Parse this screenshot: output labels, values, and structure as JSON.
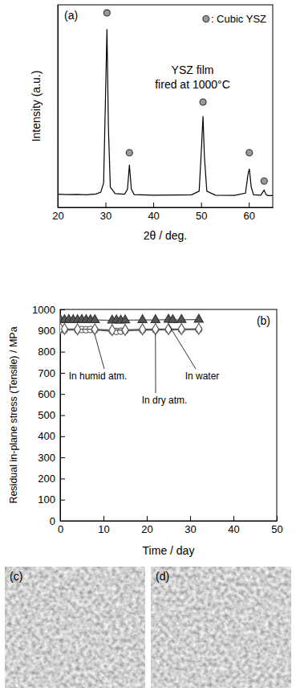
{
  "chart_data": [
    {
      "type": "line",
      "panel_label": "(a)",
      "x_label": "2θ / deg.",
      "y_label": "Intensity (a.u.)",
      "annotations": [
        "YSZ film",
        "fired at 1000°C"
      ],
      "xlim": [
        20,
        65
      ],
      "xticks": [
        20,
        30,
        40,
        50,
        60
      ],
      "ylim": [
        0,
        100
      ],
      "yticks": [],
      "tick_labels": "x",
      "legend": "upper right",
      "series": [
        {
          "type": "line",
          "color": "#000000",
          "x": [
            20,
            22,
            24,
            26,
            28,
            29,
            29.6,
            30.0,
            30.3,
            30.6,
            31,
            32,
            34,
            34.6,
            35,
            35.4,
            36,
            40,
            45,
            48,
            49.6,
            50.1,
            50.4,
            50.7,
            51.2,
            53,
            57,
            59.3,
            59.8,
            60.1,
            60.5,
            61,
            62.5,
            62.9,
            63.2,
            63.6,
            64,
            65
          ],
          "values": [
            6.5,
            6.3,
            6.4,
            6.2,
            6.6,
            7.5,
            12,
            55,
            88,
            40,
            10,
            6.8,
            6.5,
            9,
            21,
            9,
            6.3,
            6,
            6.1,
            6.2,
            8,
            30,
            45,
            25,
            8,
            6,
            5.9,
            7,
            16,
            19,
            10,
            6.2,
            6,
            7.5,
            8.5,
            6.3,
            5.8,
            5.8
          ]
        },
        {
          "type": "scatter",
          "name": ": Cubic YSZ",
          "color": "#999999",
          "marker": "circle",
          "x": [
            30.3,
            35,
            50.4,
            60.1,
            63.2
          ],
          "values": [
            96,
            27,
            52,
            27,
            13
          ]
        }
      ]
    },
    {
      "type": "line",
      "panel_label": "(b)",
      "x_label": "Time / day",
      "y_label": "Residual in-plane stress (Tensile) / MPa",
      "xlim": [
        0,
        50
      ],
      "xticks": [
        0,
        10,
        20,
        30,
        40,
        50
      ],
      "ylim": [
        0,
        1000
      ],
      "yticks": [
        0,
        100,
        200,
        300,
        400,
        500,
        600,
        700,
        800,
        900,
        1000
      ],
      "series": [
        {
          "name": "In water",
          "color": "#555555",
          "marker": "triangle",
          "x": [
            0,
            1,
            2,
            3,
            4,
            5,
            6,
            7,
            8,
            12,
            13,
            14,
            15,
            19,
            22,
            25,
            26,
            28,
            32
          ],
          "values": [
            952,
            950,
            951,
            950,
            950,
            951,
            950,
            950,
            950,
            948,
            949,
            948,
            949,
            950,
            950,
            952,
            950,
            951,
            952
          ]
        },
        {
          "name": "In humid atm.",
          "color": "#555555",
          "marker": "open-circle",
          "x": [
            0,
            1,
            4,
            5,
            6,
            7,
            8,
            12,
            13,
            14,
            15,
            19,
            22,
            25,
            28,
            32
          ],
          "values": [
            905,
            903,
            903,
            905,
            904,
            905,
            903,
            897,
            896,
            897,
            899,
            902,
            903,
            904,
            904,
            905
          ]
        },
        {
          "name": "In dry atm.",
          "color": "#555555",
          "marker": "open-diamond",
          "x": [
            0,
            1,
            4,
            8,
            12,
            15,
            19,
            22,
            25,
            28,
            32
          ],
          "values": [
            910,
            908,
            906,
            906,
            902,
            903,
            906,
            907,
            907,
            907,
            908
          ]
        }
      ]
    }
  ],
  "images": [
    {
      "label": "(c)"
    },
    {
      "label": "(d)"
    }
  ]
}
